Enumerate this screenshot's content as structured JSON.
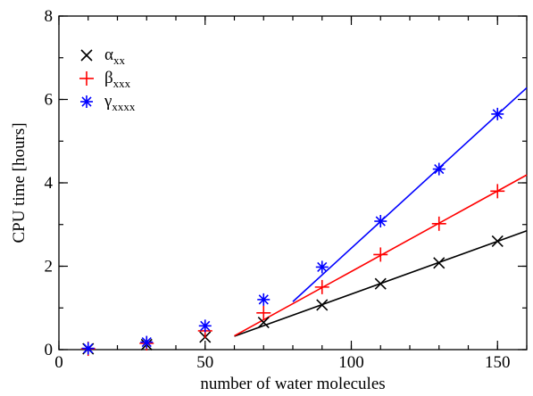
{
  "chart_data": {
    "type": "scatter",
    "xlabel": "number of water molecules",
    "ylabel": "CPU time [hours]",
    "xlim": [
      0,
      160
    ],
    "ylim": [
      0,
      8
    ],
    "xticks": [
      0,
      50,
      100,
      150
    ],
    "yticks": [
      0,
      2,
      4,
      6,
      8
    ],
    "x_minor_step": 10,
    "y_minor_step": 1,
    "grid": false,
    "legend_placement": "top-left",
    "series": [
      {
        "name": "α",
        "name_sub": "xx",
        "color": "#000000",
        "marker": "x",
        "points": [
          [
            10,
            0.02
          ],
          [
            30,
            0.12
          ],
          [
            50,
            0.3
          ],
          [
            70,
            0.65
          ],
          [
            90,
            1.07
          ],
          [
            110,
            1.58
          ],
          [
            130,
            2.08
          ],
          [
            150,
            2.6
          ]
        ],
        "fit": [
          [
            60,
            0.32
          ],
          [
            160,
            2.85
          ]
        ]
      },
      {
        "name": "β",
        "name_sub": "xxx",
        "color": "#ff0000",
        "marker": "plus",
        "points": [
          [
            10,
            0.02
          ],
          [
            30,
            0.15
          ],
          [
            50,
            0.45
          ],
          [
            70,
            0.88
          ],
          [
            90,
            1.5
          ],
          [
            110,
            2.28
          ],
          [
            130,
            3.02
          ],
          [
            150,
            3.8
          ]
        ],
        "fit": [
          [
            60,
            0.33
          ],
          [
            160,
            4.19
          ]
        ]
      },
      {
        "name": "γ",
        "name_sub": "xxxx",
        "color": "#0000ff",
        "marker": "star",
        "points": [
          [
            10,
            0.03
          ],
          [
            30,
            0.18
          ],
          [
            50,
            0.57
          ],
          [
            70,
            1.2
          ],
          [
            90,
            1.98
          ],
          [
            110,
            3.08
          ],
          [
            130,
            4.33
          ],
          [
            150,
            5.65
          ]
        ],
        "fit": [
          [
            80,
            1.15
          ],
          [
            160,
            6.28
          ]
        ]
      }
    ]
  }
}
